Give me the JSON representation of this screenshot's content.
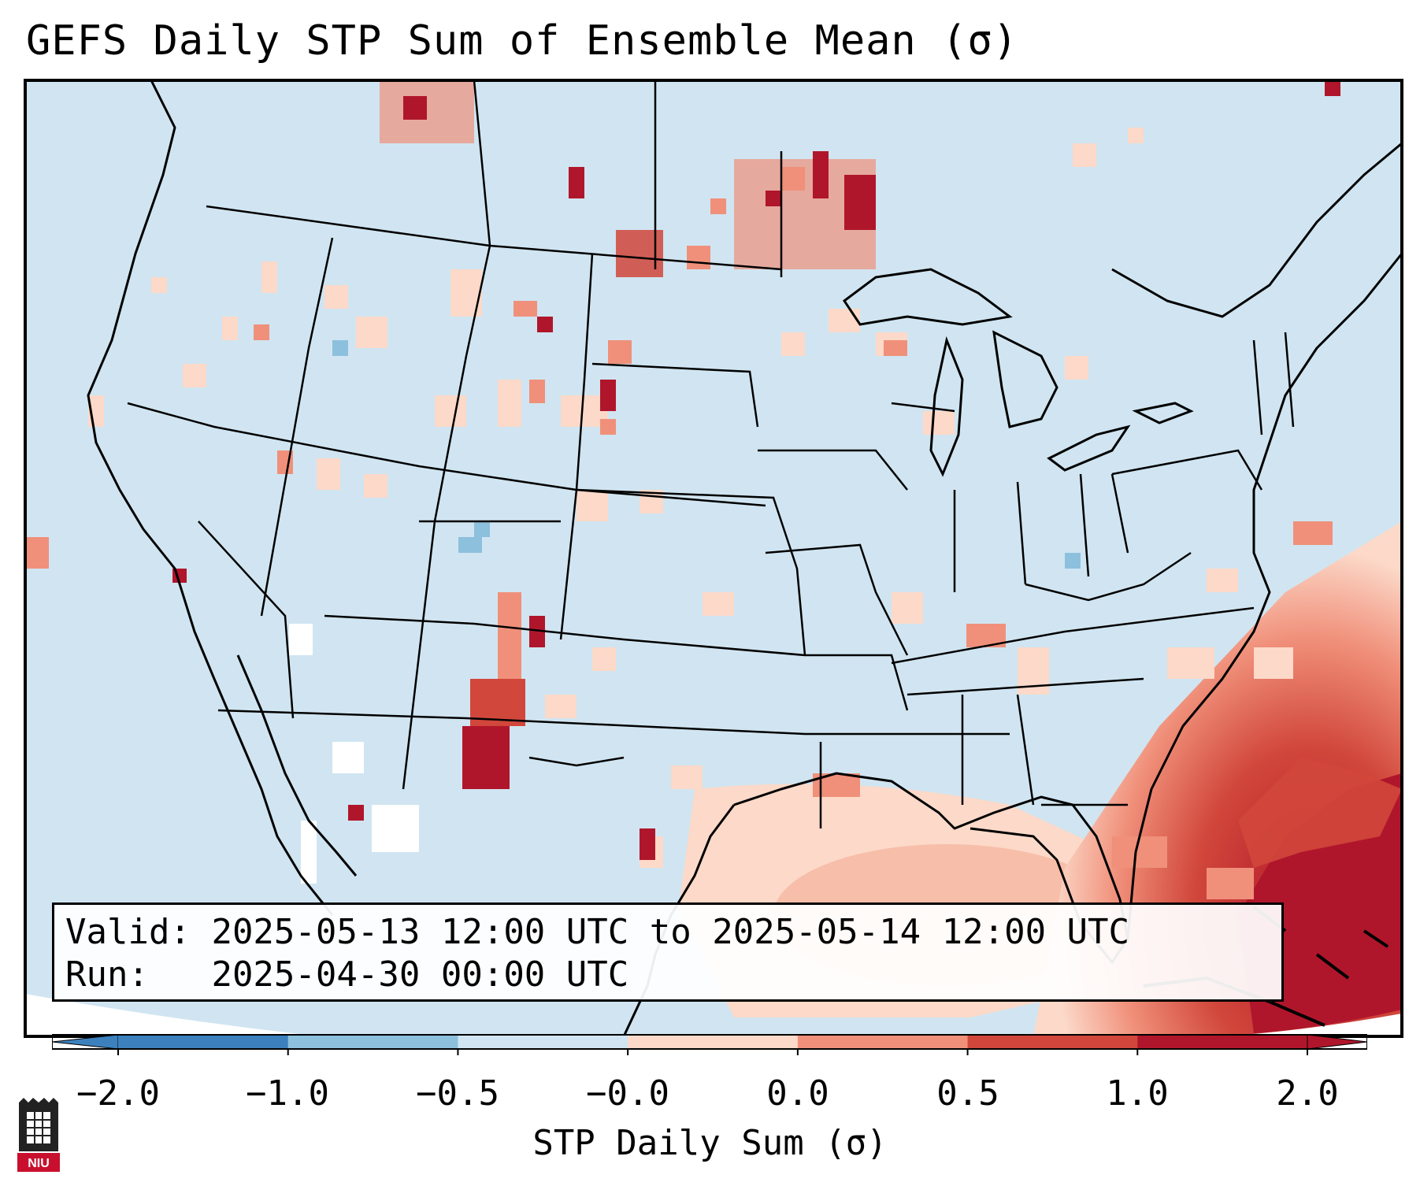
{
  "title": "GEFS Daily STP Sum of Ensemble Mean (σ)",
  "info": {
    "valid_label": "Valid:",
    "valid_text": "2025-05-13 12:00 UTC to 2025-05-14 12:00 UTC",
    "run_label": "Run:",
    "run_text": "2025-04-30 00:00 UTC"
  },
  "colorbar": {
    "label": "STP Daily Sum (σ)",
    "ticks": [
      "−2.0",
      "−1.0",
      "−0.5",
      "−0.0",
      "0.0",
      "0.5",
      "1.0",
      "2.0"
    ],
    "colors": [
      "#3c81bd",
      "#8dc0dd",
      "#d0e5f1",
      "#ffffff",
      "#fcd9c9",
      "#f0907a",
      "#d1473b",
      "#b0162b"
    ]
  },
  "map": {
    "background_color": "#d0e5f1",
    "region": "Contiguous United States",
    "hotspots": [
      {
        "name": "northern-plains",
        "level": 1.0
      },
      {
        "name": "upper-great-lakes",
        "level": 1.0
      },
      {
        "name": "west-texas",
        "level": 2.0
      },
      {
        "name": "gulf-of-mexico",
        "level": 0.5
      },
      {
        "name": "western-atlantic",
        "level": 2.0
      }
    ]
  },
  "logo": {
    "text": "NIU"
  }
}
